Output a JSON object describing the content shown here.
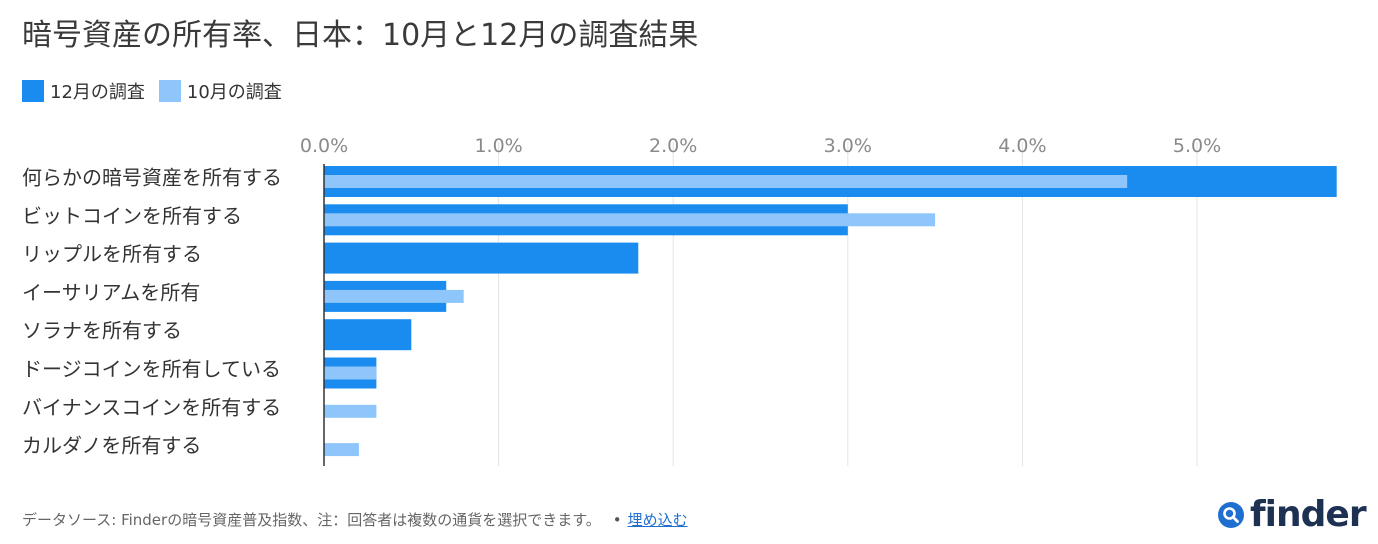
{
  "title": "暗号資産の所有率、日本：10月と12月の調査結果",
  "legend": {
    "dec": "12月の調査",
    "oct": "10月の調査"
  },
  "colors": {
    "dec": "#1a8cf0",
    "oct": "#8ec6fb",
    "grid": "#e3e3e3",
    "axis": "#333333",
    "tick": "#8a8a8a",
    "label": "#333333"
  },
  "chart_data": {
    "type": "bar",
    "orientation": "horizontal",
    "categories": [
      "何らかの暗号資産を所有する",
      "ビットコインを所有する",
      "リップルを所有する",
      "イーサリアムを所有",
      "ソラナを所有する",
      "ドージコインを所有している",
      "バイナンスコインを所有する",
      "カルダノを所有する"
    ],
    "series": [
      {
        "name": "12月の調査",
        "values": [
          5.8,
          3.0,
          1.8,
          0.7,
          0.5,
          0.3,
          0,
          0
        ]
      },
      {
        "name": "10月の調査",
        "values": [
          4.6,
          3.5,
          0,
          0.8,
          0,
          0.3,
          0.3,
          0.2
        ]
      }
    ],
    "ticks": [
      "0.0%",
      "1.0%",
      "2.0%",
      "3.0%",
      "4.0%",
      "5.0%"
    ],
    "xlim": [
      0,
      5.8
    ],
    "grid": true,
    "legend_position": "top-left"
  },
  "footer": {
    "source": "データソース: Finderの暗号資産普及指数、注：回答者は複数の通貨を選択できます。",
    "bullet": "•",
    "embed": "埋め込む"
  },
  "logo": {
    "text": "finder",
    "icon": "finder-logo-icon"
  }
}
